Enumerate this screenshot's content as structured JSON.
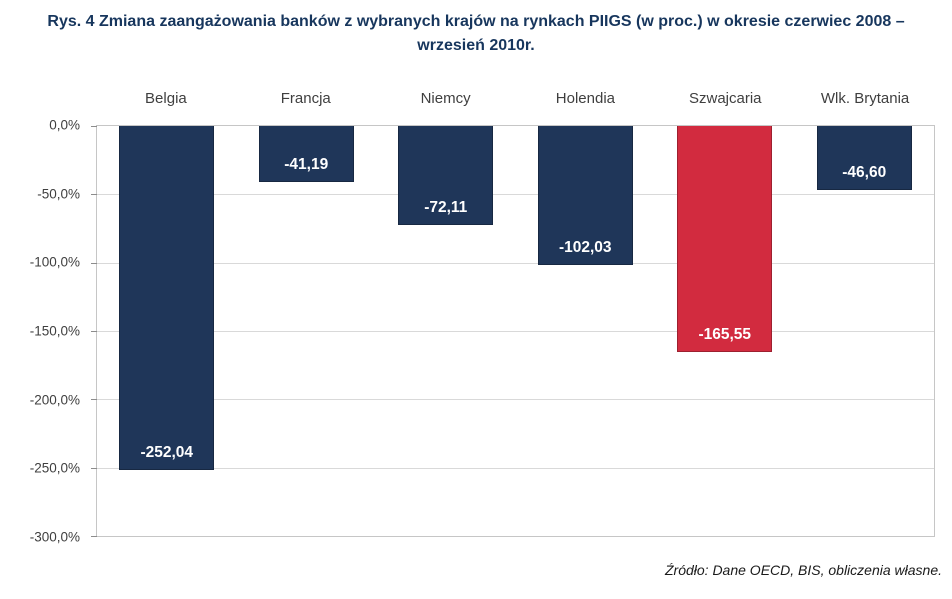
{
  "title": "Rys. 4 Zmiana zaangażowania banków z wybranych krajów na rynkach PIIGS (w proc.) w okresie czerwiec 2008 – wrzesień 2010r.",
  "source": "Źródło: Dane OECD, BIS, obliczenia własne.",
  "colors": {
    "bar_navy": "#1f3659",
    "bar_red": "#d22b3f",
    "gridline": "#d9d9d9",
    "title_text": "#17365d"
  },
  "chart_data": {
    "type": "bar",
    "title": "Rys. 4 Zmiana zaangażowania banków z wybranych krajów na rynkach PIIGS (w proc.) w okresie czerwiec 2008 – wrzesień 2010r.",
    "categories": [
      "Belgia",
      "Francja",
      "Niemcy",
      "Holendia",
      "Szwajcaria",
      "Wlk. Brytania"
    ],
    "values": [
      -252.04,
      -41.19,
      -72.11,
      -102.03,
      -165.55,
      -46.6
    ],
    "value_labels": [
      "-252,04",
      "-41,19",
      "-72,11",
      "-102,03",
      "-165,55",
      "-46,60"
    ],
    "bar_colors": [
      "#1f3659",
      "#1f3659",
      "#1f3659",
      "#1f3659",
      "#d22b3f",
      "#1f3659"
    ],
    "y_ticks": [
      "0,0%",
      "-50,0%",
      "-100,0%",
      "-150,0%",
      "-200,0%",
      "-250,0%",
      "-300,0%"
    ],
    "ylim": [
      0,
      -300
    ],
    "xlabel": "",
    "ylabel": "",
    "grid": true,
    "legend": false
  }
}
